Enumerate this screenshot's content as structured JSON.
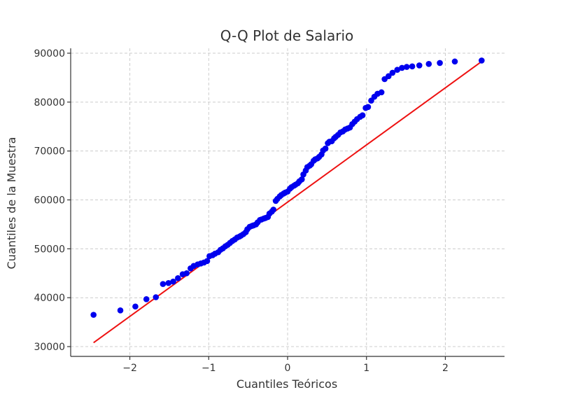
{
  "chart_data": {
    "type": "scatter",
    "title": "Q-Q Plot de Salario",
    "xlabel": "Cuantiles Teóricos",
    "ylabel": "Cuantiles de la Muestra",
    "xlim": [
      -2.75,
      2.75
    ],
    "ylim": [
      28000,
      91000
    ],
    "xticks": [
      -2,
      -1,
      0,
      1,
      2
    ],
    "xtick_labels": [
      "−2",
      "−1",
      "0",
      "1",
      "2"
    ],
    "yticks": [
      30000,
      40000,
      50000,
      60000,
      70000,
      80000,
      90000
    ],
    "ytick_labels": [
      "30000",
      "40000",
      "50000",
      "60000",
      "70000",
      "80000",
      "90000"
    ],
    "grid": true,
    "colors": {
      "points": "#0000ee",
      "line": "#ee1111"
    },
    "fit_line": {
      "x": [
        -2.46,
        2.46
      ],
      "y": [
        30800,
        88300
      ]
    },
    "series": [
      {
        "x": [
          -2.46,
          -2.12,
          -1.93,
          -1.79,
          -1.67,
          -1.58,
          -1.51,
          -1.45,
          -1.39,
          -1.33,
          -1.28,
          -1.23,
          -1.19,
          -1.14,
          -1.1,
          -1.06,
          -1.02,
          -0.99,
          -0.95,
          -0.92,
          -0.88,
          -0.85,
          -0.82,
          -0.79,
          -0.76,
          -0.73,
          -0.7,
          -0.67,
          -0.64,
          -0.61,
          -0.59,
          -0.56,
          -0.53,
          -0.51,
          -0.48,
          -0.45,
          -0.43,
          -0.4,
          -0.38,
          -0.35,
          -0.33,
          -0.3,
          -0.28,
          -0.25,
          -0.23,
          -0.2,
          -0.18,
          -0.15,
          -0.13,
          -0.1,
          -0.08,
          -0.05,
          -0.03,
          0.0,
          0.03,
          0.05,
          0.08,
          0.1,
          0.13,
          0.15,
          0.18,
          0.2,
          0.23,
          0.25,
          0.28,
          0.3,
          0.33,
          0.35,
          0.38,
          0.4,
          0.43,
          0.45,
          0.48,
          0.51,
          0.53,
          0.56,
          0.59,
          0.61,
          0.64,
          0.67,
          0.7,
          0.73,
          0.76,
          0.79,
          0.82,
          0.85,
          0.88,
          0.92,
          0.95,
          0.99,
          1.02,
          1.06,
          1.1,
          1.14,
          1.19,
          1.23,
          1.28,
          1.33,
          1.39,
          1.45,
          1.51,
          1.58,
          1.67,
          1.79,
          1.93,
          2.12,
          2.46
        ],
        "y": [
          36500,
          37400,
          38200,
          39700,
          40100,
          42800,
          43000,
          43300,
          44000,
          44800,
          45000,
          46000,
          46500,
          46800,
          47000,
          47200,
          47500,
          48500,
          48700,
          49000,
          49300,
          49800,
          50100,
          50500,
          50800,
          51200,
          51600,
          51900,
          52300,
          52500,
          52700,
          53000,
          53400,
          54000,
          54500,
          54700,
          54800,
          55000,
          55400,
          55900,
          56000,
          56200,
          56300,
          56500,
          57200,
          57600,
          58000,
          59800,
          60200,
          60700,
          61000,
          61300,
          61500,
          61700,
          62300,
          62600,
          62900,
          63100,
          63400,
          63800,
          64200,
          65200,
          66000,
          66700,
          67000,
          67300,
          68000,
          68300,
          68500,
          68800,
          69300,
          70100,
          70500,
          71600,
          71900,
          72000,
          72600,
          72900,
          73300,
          73800,
          74000,
          74400,
          74600,
          74800,
          75500,
          76000,
          76500,
          77000,
          77300,
          78800,
          79000,
          80300,
          81100,
          81700,
          82000,
          84700,
          85300,
          86000,
          86600,
          87000,
          87200,
          87300,
          87500,
          87800,
          88000,
          88300,
          88500
        ]
      }
    ]
  }
}
